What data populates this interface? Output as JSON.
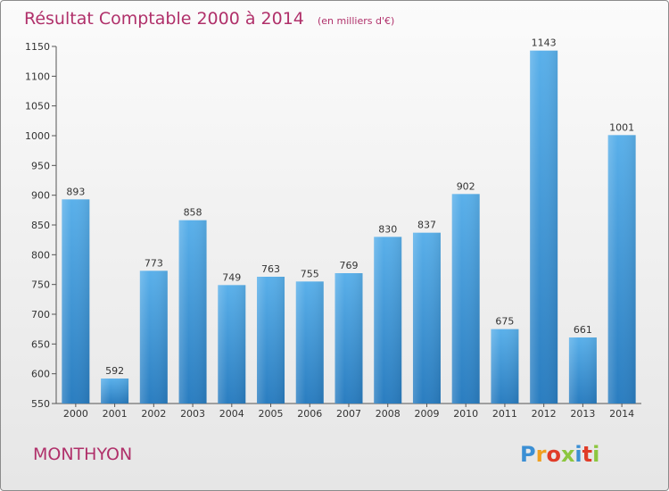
{
  "chart_data": {
    "type": "bar",
    "title": "Résultat Comptable 2000 à 2014",
    "subtitle": "(en milliers d'€)",
    "categories": [
      "2000",
      "2001",
      "2002",
      "2003",
      "2004",
      "2005",
      "2006",
      "2007",
      "2008",
      "2009",
      "2010",
      "2011",
      "2012",
      "2013",
      "2014"
    ],
    "values": [
      893,
      592,
      773,
      858,
      749,
      763,
      755,
      769,
      830,
      837,
      902,
      675,
      1143,
      661,
      1001
    ],
    "ylim": [
      550,
      1150
    ],
    "yticks": [
      550,
      600,
      650,
      700,
      750,
      800,
      850,
      900,
      950,
      1000,
      1050,
      1100,
      1150
    ],
    "xlabel": "",
    "ylabel": "",
    "grid": false
  },
  "footer": {
    "town": "MONTHYON",
    "brand_letters": [
      "P",
      "r",
      "o",
      "x",
      "i",
      "t",
      "i"
    ]
  },
  "colors": {
    "title": "#b0306a",
    "bar_light": "#5ab0ea",
    "bar_dark": "#2a7dc0",
    "brand": [
      "#3b8fd4",
      "#f0a020",
      "#e03c28",
      "#8cc63f",
      "#3b8fd4",
      "#e03c28",
      "#8cc63f"
    ]
  }
}
